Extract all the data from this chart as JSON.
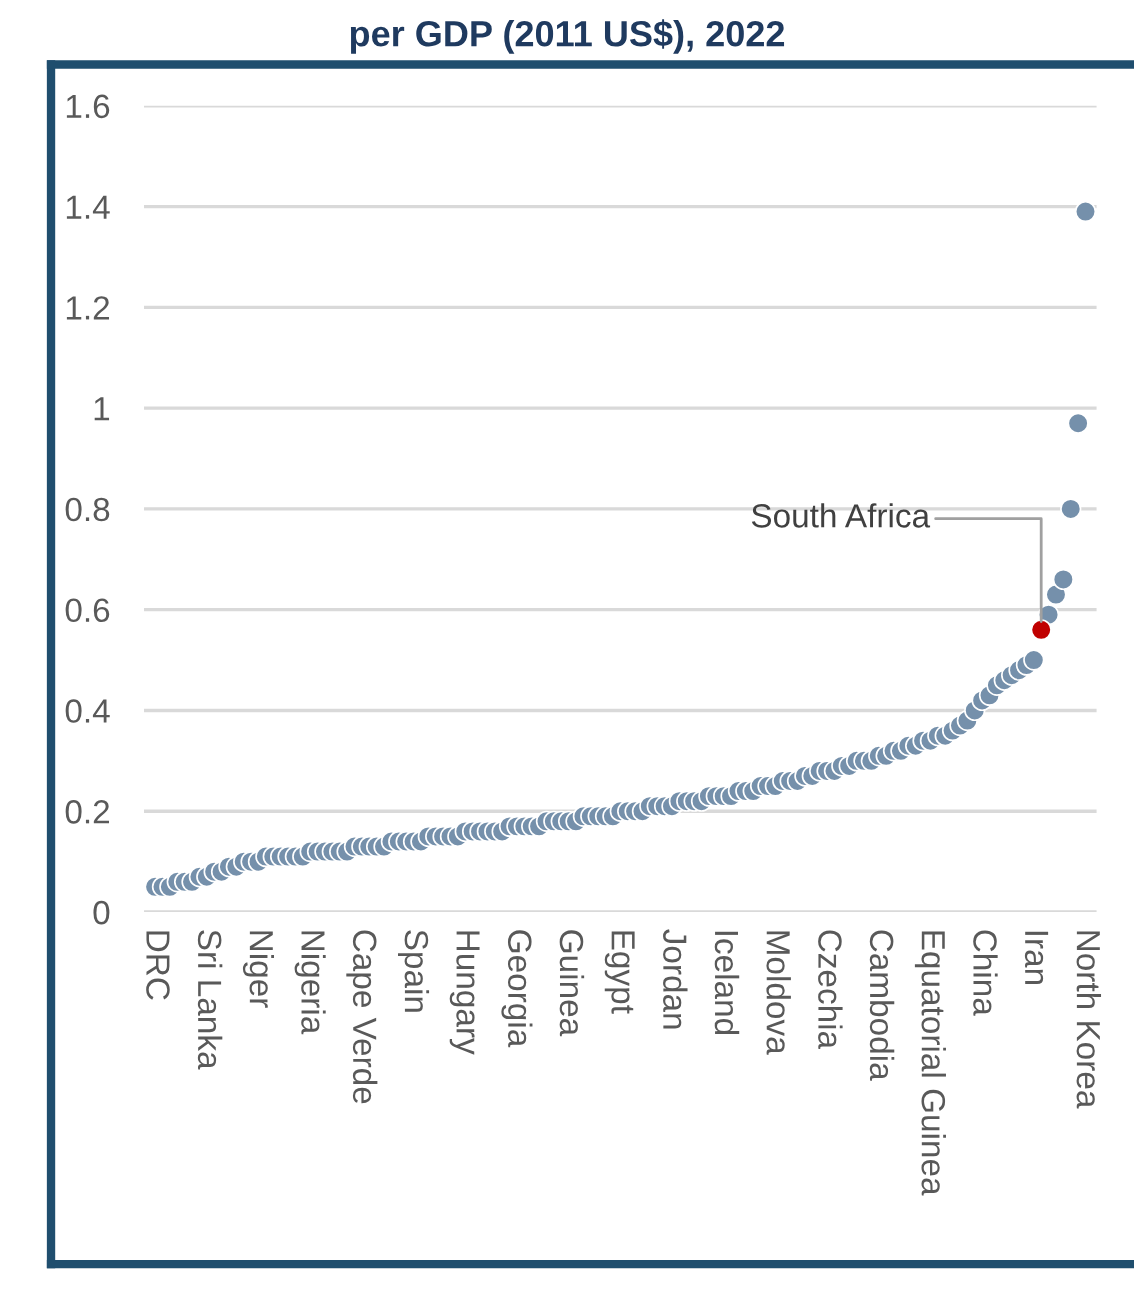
{
  "chart_data": {
    "type": "scatter",
    "title": "per GDP (2011 US$), 2022",
    "categories": [
      "DRC",
      null,
      null,
      null,
      null,
      null,
      null,
      "Sri Lanka",
      null,
      null,
      null,
      null,
      null,
      null,
      "Niger",
      null,
      null,
      null,
      null,
      null,
      null,
      "Nigeria",
      null,
      null,
      null,
      null,
      null,
      null,
      "Cape Verde",
      null,
      null,
      null,
      null,
      null,
      null,
      "Spain",
      null,
      null,
      null,
      null,
      null,
      null,
      "Hungary",
      null,
      null,
      null,
      null,
      null,
      null,
      "Georgia",
      null,
      null,
      null,
      null,
      null,
      null,
      "Guinea",
      null,
      null,
      null,
      null,
      null,
      null,
      "Egypt",
      null,
      null,
      null,
      null,
      null,
      null,
      "Jordan",
      null,
      null,
      null,
      null,
      null,
      null,
      "Iceland",
      null,
      null,
      null,
      null,
      null,
      null,
      "Moldova",
      null,
      null,
      null,
      null,
      null,
      null,
      "Czechia",
      null,
      null,
      null,
      null,
      null,
      null,
      "Cambodia",
      null,
      null,
      null,
      null,
      null,
      null,
      "Equatorial Guinea",
      null,
      null,
      null,
      null,
      null,
      null,
      "China",
      null,
      null,
      null,
      null,
      null,
      null,
      "Iran",
      null,
      null,
      null,
      null,
      null,
      null,
      "North Korea"
    ],
    "series": [
      {
        "color": "#7590ab",
        "values": [
          0.05,
          0.05,
          0.05,
          0.06,
          0.06,
          0.06,
          0.07,
          0.07,
          0.08,
          0.08,
          0.09,
          0.09,
          0.1,
          0.1,
          0.1,
          0.11,
          0.11,
          0.11,
          0.11,
          0.11,
          0.11,
          0.12,
          0.12,
          0.12,
          0.12,
          0.12,
          0.12,
          0.13,
          0.13,
          0.13,
          0.13,
          0.13,
          0.14,
          0.14,
          0.14,
          0.14,
          0.14,
          0.15,
          0.15,
          0.15,
          0.15,
          0.15,
          0.16,
          0.16,
          0.16,
          0.16,
          0.16,
          0.16,
          0.17,
          0.17,
          0.17,
          0.17,
          0.17,
          0.18,
          0.18,
          0.18,
          0.18,
          0.18,
          0.19,
          0.19,
          0.19,
          0.19,
          0.19,
          0.2,
          0.2,
          0.2,
          0.2,
          0.21,
          0.21,
          0.21,
          0.21,
          0.22,
          0.22,
          0.22,
          0.22,
          0.23,
          0.23,
          0.23,
          0.23,
          0.24,
          0.24,
          0.24,
          0.25,
          0.25,
          0.25,
          0.26,
          0.26,
          0.26,
          0.27,
          0.27,
          0.28,
          0.28,
          0.28,
          0.29,
          0.29,
          0.3,
          0.3,
          0.3,
          0.31,
          0.31,
          0.32,
          0.32,
          0.33,
          0.33,
          0.34,
          0.34,
          0.35,
          0.35,
          0.36,
          0.37,
          0.38,
          0.4,
          0.42,
          0.43,
          0.45,
          0.46,
          0.47,
          0.48,
          0.49,
          0.5,
          null,
          0.59,
          0.63,
          0.66,
          0.8,
          0.97,
          1.39
        ]
      },
      {
        "name": "South Africa",
        "color": "#c00000",
        "values": [
          null,
          null,
          null,
          null,
          null,
          null,
          null,
          null,
          null,
          null,
          null,
          null,
          null,
          null,
          null,
          null,
          null,
          null,
          null,
          null,
          null,
          null,
          null,
          null,
          null,
          null,
          null,
          null,
          null,
          null,
          null,
          null,
          null,
          null,
          null,
          null,
          null,
          null,
          null,
          null,
          null,
          null,
          null,
          null,
          null,
          null,
          null,
          null,
          null,
          null,
          null,
          null,
          null,
          null,
          null,
          null,
          null,
          null,
          null,
          null,
          null,
          null,
          null,
          null,
          null,
          null,
          null,
          null,
          null,
          null,
          null,
          null,
          null,
          null,
          null,
          null,
          null,
          null,
          null,
          null,
          null,
          null,
          null,
          null,
          null,
          null,
          null,
          null,
          null,
          null,
          null,
          null,
          null,
          null,
          null,
          null,
          null,
          null,
          null,
          null,
          null,
          null,
          null,
          null,
          null,
          null,
          null,
          null,
          null,
          null,
          null,
          null,
          null,
          null,
          null,
          null,
          null,
          null,
          null,
          null,
          0.56,
          null,
          null,
          null,
          null,
          null,
          null
        ]
      }
    ],
    "ylim": [
      0,
      1.6
    ],
    "yticks": [
      0,
      0.2,
      0.4,
      0.6,
      0.8,
      1,
      1.2,
      1.4,
      1.6
    ],
    "grid": "y",
    "legend": false,
    "marker": "circle"
  }
}
